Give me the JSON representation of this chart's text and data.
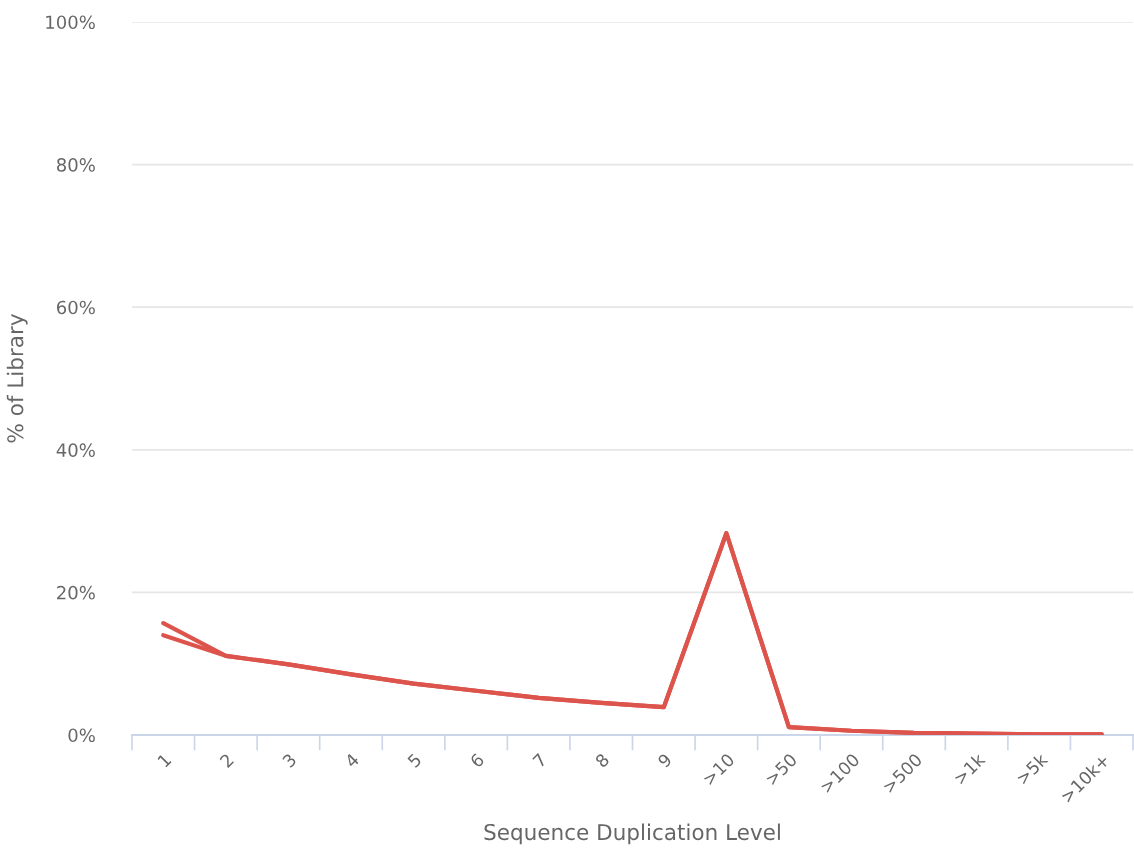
{
  "chart_data": {
    "type": "line",
    "xlabel": "Sequence Duplication Level",
    "ylabel": "% of Library",
    "categories": [
      "1",
      "2",
      "3",
      "4",
      "5",
      "6",
      "7",
      "8",
      "9",
      ">10",
      ">50",
      ">100",
      ">500",
      ">1k",
      ">5k",
      ">10k+"
    ],
    "series": [
      {
        "color": "#dc544c",
        "values": [
          15.7,
          11.1,
          9.9,
          8.5,
          7.2,
          6.2,
          5.2,
          4.5,
          3.9,
          28.3,
          1.1,
          0.6,
          0.3,
          0.2,
          0.1,
          0.1
        ]
      },
      {
        "color": "#dc544c",
        "values": [
          14.0,
          11.1,
          9.9,
          8.5,
          7.2,
          6.2,
          5.2,
          4.5,
          3.9,
          28.3,
          1.1,
          0.6,
          0.3,
          0.2,
          0.1,
          0.1
        ]
      }
    ],
    "ylim": [
      0,
      100
    ],
    "yticks": [
      {
        "value": 0,
        "label": "0%"
      },
      {
        "value": 20,
        "label": "20%"
      },
      {
        "value": 40,
        "label": "40%"
      },
      {
        "value": 60,
        "label": "60%"
      },
      {
        "value": 80,
        "label": "80%"
      },
      {
        "value": 100,
        "label": "100%"
      }
    ],
    "grid": "y",
    "marker": "none",
    "line_style": "solid"
  }
}
